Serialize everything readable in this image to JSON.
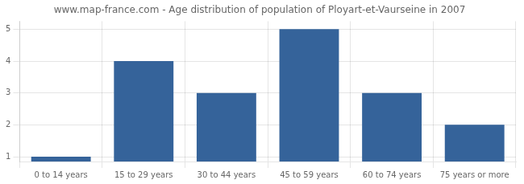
{
  "chart_data": {
    "type": "bar",
    "title": "www.map-france.com - Age distribution of population of Ployart-et-Vaurseine in 2007",
    "categories": [
      "0 to 14 years",
      "15 to 29 years",
      "30 to 44 years",
      "45 to 59 years",
      "60 to 74 years",
      "75 years or more"
    ],
    "values": [
      1,
      4,
      3,
      5,
      3,
      2
    ],
    "color": "#35639a",
    "ylim": [
      0.85,
      5.25
    ],
    "yticks": [
      1,
      2,
      3,
      4,
      5
    ],
    "grid": true
  }
}
